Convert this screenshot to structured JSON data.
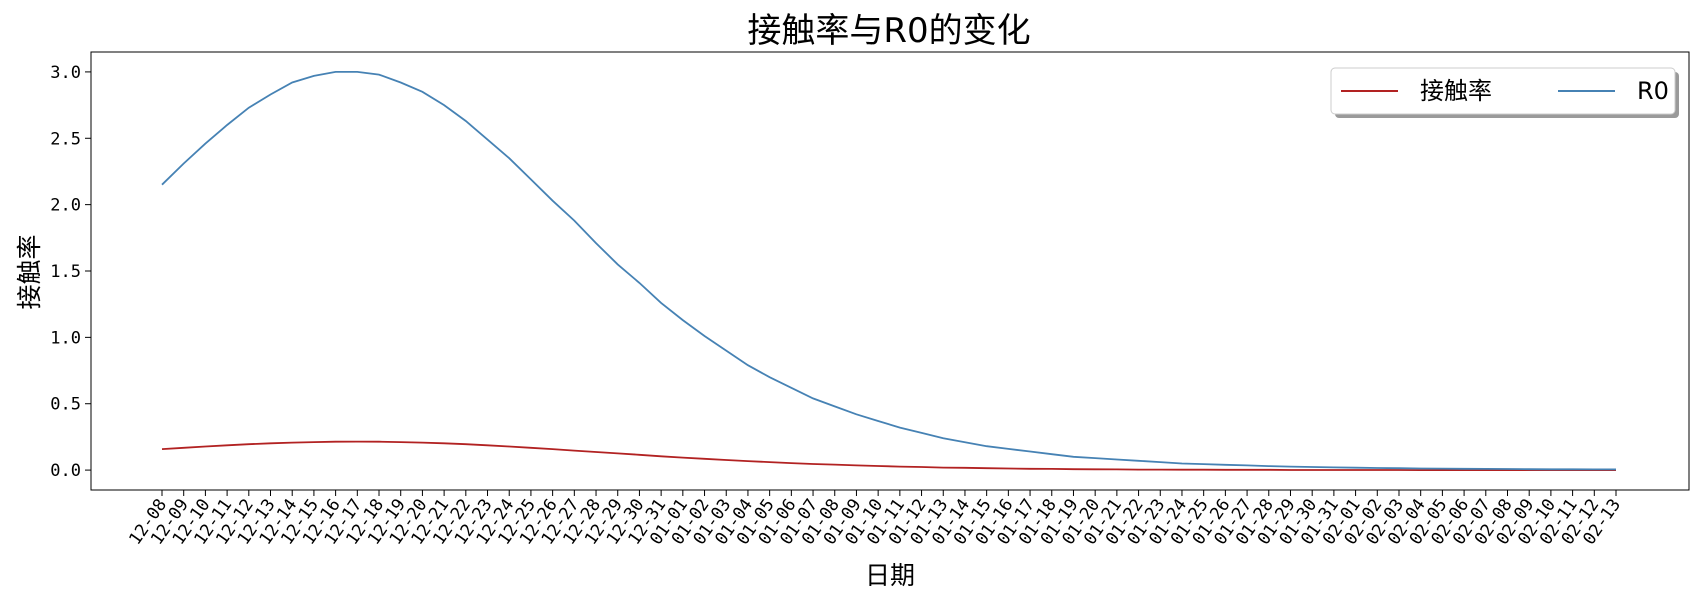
{
  "chart_data": {
    "type": "line",
    "title": "接触率与R0的变化",
    "xlabel": "日期",
    "ylabel": "接触率",
    "ylim": [
      -0.15,
      3.15
    ],
    "yticks": [
      0.0,
      0.5,
      1.0,
      1.5,
      2.0,
      2.5,
      3.0
    ],
    "ytick_labels": [
      "0.0",
      "0.5",
      "1.0",
      "1.5",
      "2.0",
      "2.5",
      "3.0"
    ],
    "grid": false,
    "legend_position": "top-right",
    "x": [
      "12-08",
      "12-09",
      "12-10",
      "12-11",
      "12-12",
      "12-13",
      "12-14",
      "12-15",
      "12-16",
      "12-17",
      "12-18",
      "12-19",
      "12-20",
      "12-21",
      "12-22",
      "12-23",
      "12-24",
      "12-25",
      "12-26",
      "12-27",
      "12-28",
      "12-29",
      "12-30",
      "12-31",
      "01-01",
      "01-02",
      "01-03",
      "01-04",
      "01-05",
      "01-06",
      "01-07",
      "01-08",
      "01-09",
      "01-10",
      "01-11",
      "01-12",
      "01-13",
      "01-14",
      "01-15",
      "01-16",
      "01-17",
      "01-18",
      "01-19",
      "01-20",
      "01-21",
      "01-22",
      "01-23",
      "01-24",
      "01-25",
      "01-26",
      "01-27",
      "01-28",
      "01-29",
      "01-30",
      "01-31",
      "02-01",
      "02-02",
      "02-03",
      "02-04",
      "02-05",
      "02-06",
      "02-07",
      "02-08",
      "02-09",
      "02-10",
      "02-11",
      "02-12",
      "02-13"
    ],
    "series": [
      {
        "name": "接触率",
        "color": "#b22222",
        "values": [
          0.158,
          0.168,
          0.178,
          0.187,
          0.195,
          0.202,
          0.207,
          0.211,
          0.214,
          0.215,
          0.214,
          0.211,
          0.207,
          0.202,
          0.195,
          0.187,
          0.178,
          0.168,
          0.158,
          0.147,
          0.136,
          0.126,
          0.115,
          0.104,
          0.094,
          0.085,
          0.076,
          0.068,
          0.06,
          0.053,
          0.046,
          0.041,
          0.035,
          0.031,
          0.026,
          0.023,
          0.019,
          0.017,
          0.014,
          0.012,
          0.01,
          0.009,
          0.007,
          0.006,
          0.005,
          0.004,
          0.004,
          0.003,
          0.003,
          0.002,
          0.002,
          0.002,
          0.001,
          0.001,
          0.001,
          0.001,
          0.001,
          0.001,
          0.0,
          0.0,
          0.0,
          0.0,
          0.0,
          0.0,
          0.0,
          0.0,
          0.0,
          0.0
        ]
      },
      {
        "name": "R0",
        "color": "#4682b4",
        "values": [
          2.15,
          2.31,
          2.46,
          2.6,
          2.73,
          2.83,
          2.92,
          2.97,
          3.0,
          3.0,
          2.98,
          2.92,
          2.85,
          2.75,
          2.63,
          2.49,
          2.35,
          2.19,
          2.03,
          1.88,
          1.71,
          1.55,
          1.41,
          1.26,
          1.13,
          1.01,
          0.9,
          0.79,
          0.7,
          0.62,
          0.54,
          0.48,
          0.42,
          0.37,
          0.32,
          0.28,
          0.24,
          0.21,
          0.18,
          0.16,
          0.14,
          0.12,
          0.1,
          0.09,
          0.08,
          0.07,
          0.06,
          0.05,
          0.045,
          0.04,
          0.035,
          0.03,
          0.026,
          0.023,
          0.02,
          0.018,
          0.016,
          0.014,
          0.012,
          0.011,
          0.01,
          0.009,
          0.008,
          0.007,
          0.006,
          0.006,
          0.005,
          0.005
        ]
      }
    ]
  }
}
